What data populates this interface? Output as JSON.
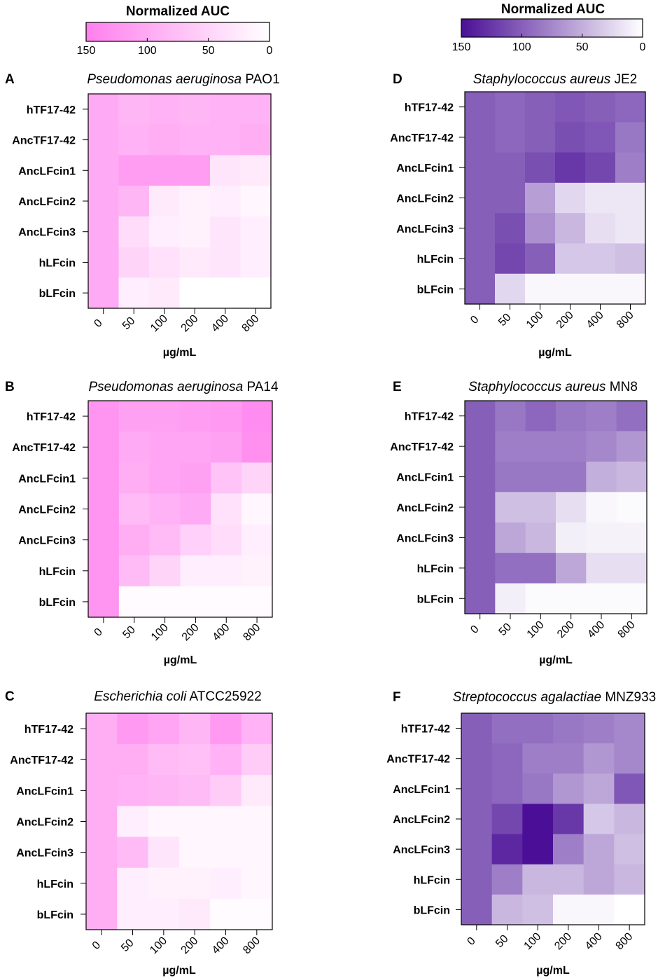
{
  "colorbars": [
    {
      "title": "Normalized AUC",
      "ticks": [
        "150",
        "100",
        "50",
        "0"
      ],
      "color_max": "#ff7fee",
      "color_min": "#ffffff"
    },
    {
      "title": "Normalized AUC",
      "ticks": [
        "150",
        "100",
        "50",
        "0"
      ],
      "color_max": "#4a0f96",
      "color_min": "#ffffff"
    }
  ],
  "chart_data": [
    {
      "type": "heatmap",
      "letter": "A",
      "title_italic": "Pseudomonas aeruginosa",
      "title_plain": " PAO1",
      "rows": [
        "hTF17-42",
        "AncTF17-42",
        "AncLFcin1",
        "AncLFcin2",
        "AncLFcin3",
        "hLFcin",
        "bLFcin"
      ],
      "columns": [
        "0",
        "50",
        "100",
        "200",
        "400",
        "800"
      ],
      "xlabel": "µg/mL",
      "palette": "pink",
      "value_range": [
        0,
        150
      ],
      "values": [
        [
          100,
          85,
          90,
          85,
          90,
          90
        ],
        [
          100,
          90,
          95,
          90,
          90,
          95
        ],
        [
          100,
          115,
          115,
          115,
          30,
          25
        ],
        [
          100,
          85,
          25,
          15,
          20,
          10
        ],
        [
          100,
          40,
          20,
          15,
          30,
          20
        ],
        [
          100,
          50,
          35,
          25,
          30,
          20
        ],
        [
          100,
          20,
          25,
          0,
          0,
          0
        ]
      ]
    },
    {
      "type": "heatmap",
      "letter": "B",
      "title_italic": "Pseudomonas aeruginosa",
      "title_plain": " PA14",
      "rows": [
        "hTF17-42",
        "AncTF17-42",
        "AncLFcin1",
        "AncLFcin2",
        "AncLFcin3",
        "hLFcin",
        "bLFcin"
      ],
      "columns": [
        "0",
        "50",
        "100",
        "200",
        "400",
        "800"
      ],
      "xlabel": "µg/mL",
      "palette": "pink",
      "value_range": [
        0,
        150
      ],
      "values": [
        [
          125,
          110,
          110,
          115,
          120,
          135
        ],
        [
          125,
          100,
          105,
          105,
          110,
          130
        ],
        [
          125,
          95,
          105,
          110,
          70,
          50
        ],
        [
          125,
          80,
          90,
          100,
          35,
          10
        ],
        [
          125,
          95,
          80,
          55,
          40,
          20
        ],
        [
          125,
          80,
          50,
          20,
          20,
          15
        ],
        [
          125,
          5,
          5,
          5,
          5,
          5
        ]
      ]
    },
    {
      "type": "heatmap",
      "letter": "C",
      "title_italic": "Escherichia coli",
      "title_plain": " ATCC25922",
      "rows": [
        "hTF17-42",
        "AncTF17-42",
        "AncLFcin1",
        "AncLFcin2",
        "AncLFcin3",
        "hLFcin",
        "bLFcin"
      ],
      "columns": [
        "0",
        "50",
        "100",
        "200",
        "400",
        "800"
      ],
      "xlabel": "µg/mL",
      "palette": "pink",
      "value_range": [
        0,
        150
      ],
      "values": [
        [
          95,
          120,
          105,
          85,
          120,
          90
        ],
        [
          95,
          95,
          80,
          75,
          90,
          60
        ],
        [
          95,
          90,
          85,
          80,
          60,
          25
        ],
        [
          95,
          20,
          10,
          10,
          10,
          10
        ],
        [
          95,
          80,
          30,
          10,
          10,
          10
        ],
        [
          95,
          20,
          15,
          15,
          20,
          10
        ],
        [
          95,
          20,
          20,
          25,
          5,
          5
        ]
      ]
    },
    {
      "type": "heatmap",
      "letter": "D",
      "title_italic": "Staphylococcus aureus",
      "title_plain": " JE2",
      "rows": [
        "hTF17-42",
        "AncTF17-42",
        "AncLFcin1",
        "AncLFcin2",
        "AncLFcin3",
        "hLFcin",
        "bLFcin"
      ],
      "columns": [
        "0",
        "50",
        "100",
        "200",
        "400",
        "800"
      ],
      "xlabel": "µg/mL",
      "palette": "purple",
      "value_range": [
        0,
        150
      ],
      "values": [
        [
          100,
          95,
          100,
          105,
          100,
          95
        ],
        [
          100,
          95,
          100,
          110,
          105,
          85
        ],
        [
          100,
          100,
          110,
          125,
          115,
          80
        ],
        [
          100,
          100,
          60,
          25,
          15,
          15
        ],
        [
          100,
          110,
          70,
          45,
          20,
          15
        ],
        [
          100,
          115,
          100,
          35,
          35,
          40
        ],
        [
          100,
          25,
          5,
          5,
          5,
          5
        ]
      ]
    },
    {
      "type": "heatmap",
      "letter": "E",
      "title_italic": "Staphylococcus aureus",
      "title_plain": " MN8",
      "rows": [
        "hTF17-42",
        "AncTF17-42",
        "AncLFcin1",
        "AncLFcin2",
        "AncLFcin3",
        "hLFcin",
        "bLFcin"
      ],
      "columns": [
        "0",
        "50",
        "100",
        "200",
        "400",
        "800"
      ],
      "xlabel": "µg/mL",
      "palette": "purple",
      "value_range": [
        0,
        150
      ],
      "values": [
        [
          100,
          85,
          95,
          85,
          80,
          90
        ],
        [
          100,
          80,
          80,
          80,
          75,
          65
        ],
        [
          100,
          85,
          85,
          85,
          50,
          45
        ],
        [
          100,
          40,
          40,
          20,
          5,
          3
        ],
        [
          100,
          55,
          45,
          10,
          8,
          8
        ],
        [
          100,
          90,
          90,
          55,
          20,
          20
        ],
        [
          100,
          10,
          3,
          3,
          3,
          3
        ]
      ]
    },
    {
      "type": "heatmap",
      "letter": "F",
      "title_italic": "Streptococcus agalactiae",
      "title_plain": " MNZ933",
      "rows": [
        "hTF17-42",
        "AncTF17-42",
        "AncLFcin1",
        "AncLFcin2",
        "AncLFcin3",
        "hLFcin",
        "bLFcin"
      ],
      "columns": [
        "0",
        "50",
        "100",
        "200",
        "400",
        "800"
      ],
      "xlabel": "µg/mL",
      "palette": "purple",
      "value_range": [
        0,
        150
      ],
      "values": [
        [
          100,
          90,
          90,
          85,
          80,
          75
        ],
        [
          100,
          95,
          80,
          80,
          65,
          75
        ],
        [
          100,
          95,
          85,
          65,
          55,
          105
        ],
        [
          100,
          115,
          150,
          125,
          35,
          45
        ],
        [
          100,
          135,
          150,
          80,
          55,
          40
        ],
        [
          100,
          80,
          45,
          45,
          55,
          45
        ],
        [
          100,
          45,
          40,
          5,
          5,
          0
        ]
      ]
    }
  ]
}
